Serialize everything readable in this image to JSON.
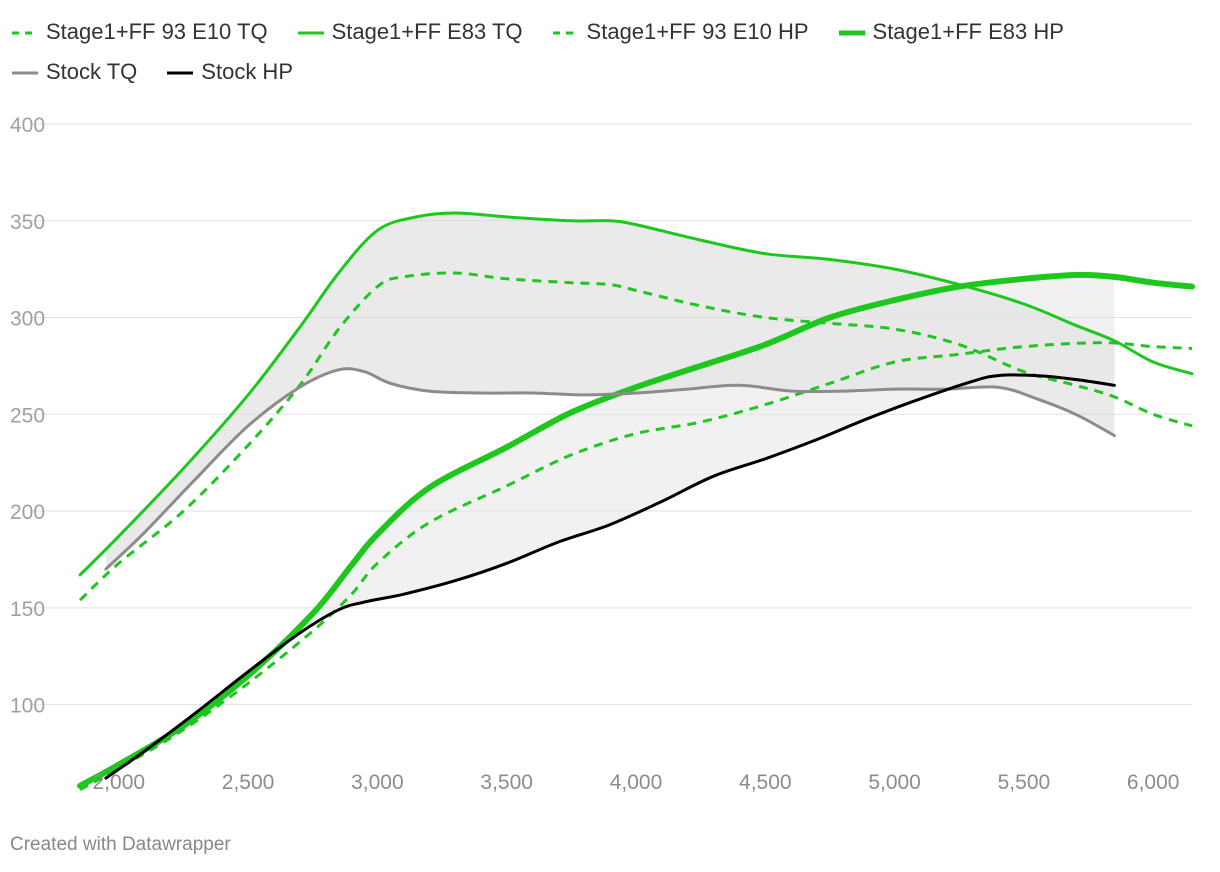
{
  "chart_data": {
    "type": "line",
    "title": "",
    "xlabel": "",
    "ylabel": "",
    "xlim": [
      1850,
      6150
    ],
    "ylim": [
      60,
      400
    ],
    "grid": true,
    "legend_position": "top",
    "x_ticks": [
      2000,
      2500,
      3000,
      3500,
      4000,
      4500,
      5000,
      5500,
      6000
    ],
    "x_tick_labels": [
      "2,000",
      "2,500",
      "3,000",
      "3,500",
      "4,000",
      "4,500",
      "5,000",
      "5,500",
      "6,000"
    ],
    "y_ticks": [
      100,
      150,
      200,
      250,
      300,
      350,
      400
    ],
    "y_tick_labels": [
      "100",
      "150",
      "200",
      "250",
      "300",
      "350",
      "400"
    ],
    "series": [
      {
        "name": "Stage1+FF 93 E10 TQ",
        "color": "#1ec71e",
        "style": "dashed",
        "width": 3,
        "x": [
          1850,
          2000,
          2250,
          2500,
          2700,
          2850,
          3000,
          3100,
          3300,
          3500,
          3750,
          3900,
          4000,
          4250,
          4500,
          4750,
          5000,
          5250,
          5500,
          5700,
          5850,
          6000,
          6150
        ],
        "y": [
          154,
          173,
          200,
          234,
          265,
          294,
          316,
          321,
          323,
          320,
          318,
          317,
          314,
          306,
          300,
          297,
          294,
          286,
          272,
          265,
          259,
          250,
          244
        ]
      },
      {
        "name": "Stage1+FF E83 TQ",
        "color": "#1ec71e",
        "style": "solid",
        "width": 3,
        "x": [
          1850,
          2000,
          2250,
          2500,
          2700,
          2850,
          3000,
          3150,
          3300,
          3500,
          3750,
          3900,
          4000,
          4250,
          4500,
          4750,
          5000,
          5250,
          5500,
          5700,
          5850,
          6000,
          6150
        ],
        "y": [
          167,
          187,
          222,
          260,
          295,
          323,
          345,
          352,
          354,
          352,
          350,
          350,
          348,
          340,
          333,
          330,
          325,
          317,
          307,
          296,
          288,
          277,
          271
        ]
      },
      {
        "name": "Stage1+FF 93 E10 HP",
        "color": "#1ec71e",
        "style": "dashed",
        "width": 3,
        "x": [
          1850,
          2000,
          2250,
          2500,
          2750,
          2900,
          3000,
          3200,
          3500,
          3750,
          4000,
          4250,
          4500,
          4750,
          5000,
          5250,
          5500,
          5800,
          6000,
          6150
        ],
        "y": [
          56,
          67,
          87,
          111,
          138,
          157,
          173,
          194,
          213,
          229,
          240,
          246,
          255,
          266,
          277,
          281,
          285,
          287,
          285,
          284
        ]
      },
      {
        "name": "Stage1+FF E83 HP",
        "color": "#1ec71e",
        "style": "solid",
        "width": 6,
        "x": [
          1850,
          2000,
          2250,
          2500,
          2750,
          2900,
          3000,
          3200,
          3500,
          3750,
          4000,
          4250,
          4500,
          4750,
          5000,
          5250,
          5500,
          5700,
          5850,
          6000,
          6150
        ],
        "y": [
          58,
          69,
          89,
          115,
          147,
          172,
          188,
          212,
          233,
          251,
          264,
          275,
          286,
          300,
          309,
          316,
          320,
          322,
          321,
          318,
          316
        ]
      },
      {
        "name": "Stock TQ",
        "color": "#8c8c8c",
        "style": "solid",
        "width": 3,
        "x": [
          1950,
          2100,
          2300,
          2500,
          2700,
          2850,
          2950,
          3050,
          3200,
          3400,
          3600,
          3800,
          4000,
          4200,
          4400,
          4600,
          4800,
          5000,
          5200,
          5400,
          5550,
          5700,
          5850
        ],
        "y": [
          170,
          189,
          217,
          244,
          264,
          273,
          272,
          266,
          262,
          261,
          261,
          260,
          261,
          263,
          265,
          262,
          262,
          263,
          263,
          264,
          258,
          250,
          239
        ]
      },
      {
        "name": "Stock HP",
        "color": "#000000",
        "style": "solid",
        "width": 3,
        "x": [
          1950,
          2100,
          2300,
          2500,
          2700,
          2850,
          2950,
          3100,
          3300,
          3500,
          3700,
          3900,
          4100,
          4300,
          4500,
          4700,
          4900,
          5100,
          5300,
          5400,
          5550,
          5700,
          5850
        ],
        "y": [
          62,
          76,
          96,
          117,
          137,
          149,
          153,
          157,
          164,
          173,
          184,
          193,
          205,
          218,
          227,
          237,
          248,
          258,
          267,
          270,
          270,
          268,
          265
        ]
      }
    ],
    "bands": [
      {
        "upper": "Stage1+FF E83 TQ",
        "lower": "Stock TQ",
        "x_end": 5850,
        "color": "#d8d8d8"
      },
      {
        "upper": "Stage1+FF E83 HP",
        "lower": "Stock HP",
        "x_end": 5850,
        "color": "#e6e6e6"
      }
    ]
  },
  "legend": {
    "items": [
      {
        "label": "Stage1+FF 93 E10 TQ",
        "color": "#1ec71e",
        "style": "dashed",
        "width": 3
      },
      {
        "label": "Stage1+FF E83 TQ",
        "color": "#1ec71e",
        "style": "solid",
        "width": 3
      },
      {
        "label": "Stage1+FF 93 E10 HP",
        "color": "#1ec71e",
        "style": "dashed",
        "width": 3
      },
      {
        "label": "Stage1+FF E83 HP",
        "color": "#1ec71e",
        "style": "solid",
        "width": 6
      },
      {
        "label": "Stock TQ",
        "color": "#8c8c8c",
        "style": "solid",
        "width": 3
      },
      {
        "label": "Stock HP",
        "color": "#000000",
        "style": "solid",
        "width": 3
      }
    ]
  },
  "footer": {
    "credit": "Created with Datawrapper"
  }
}
